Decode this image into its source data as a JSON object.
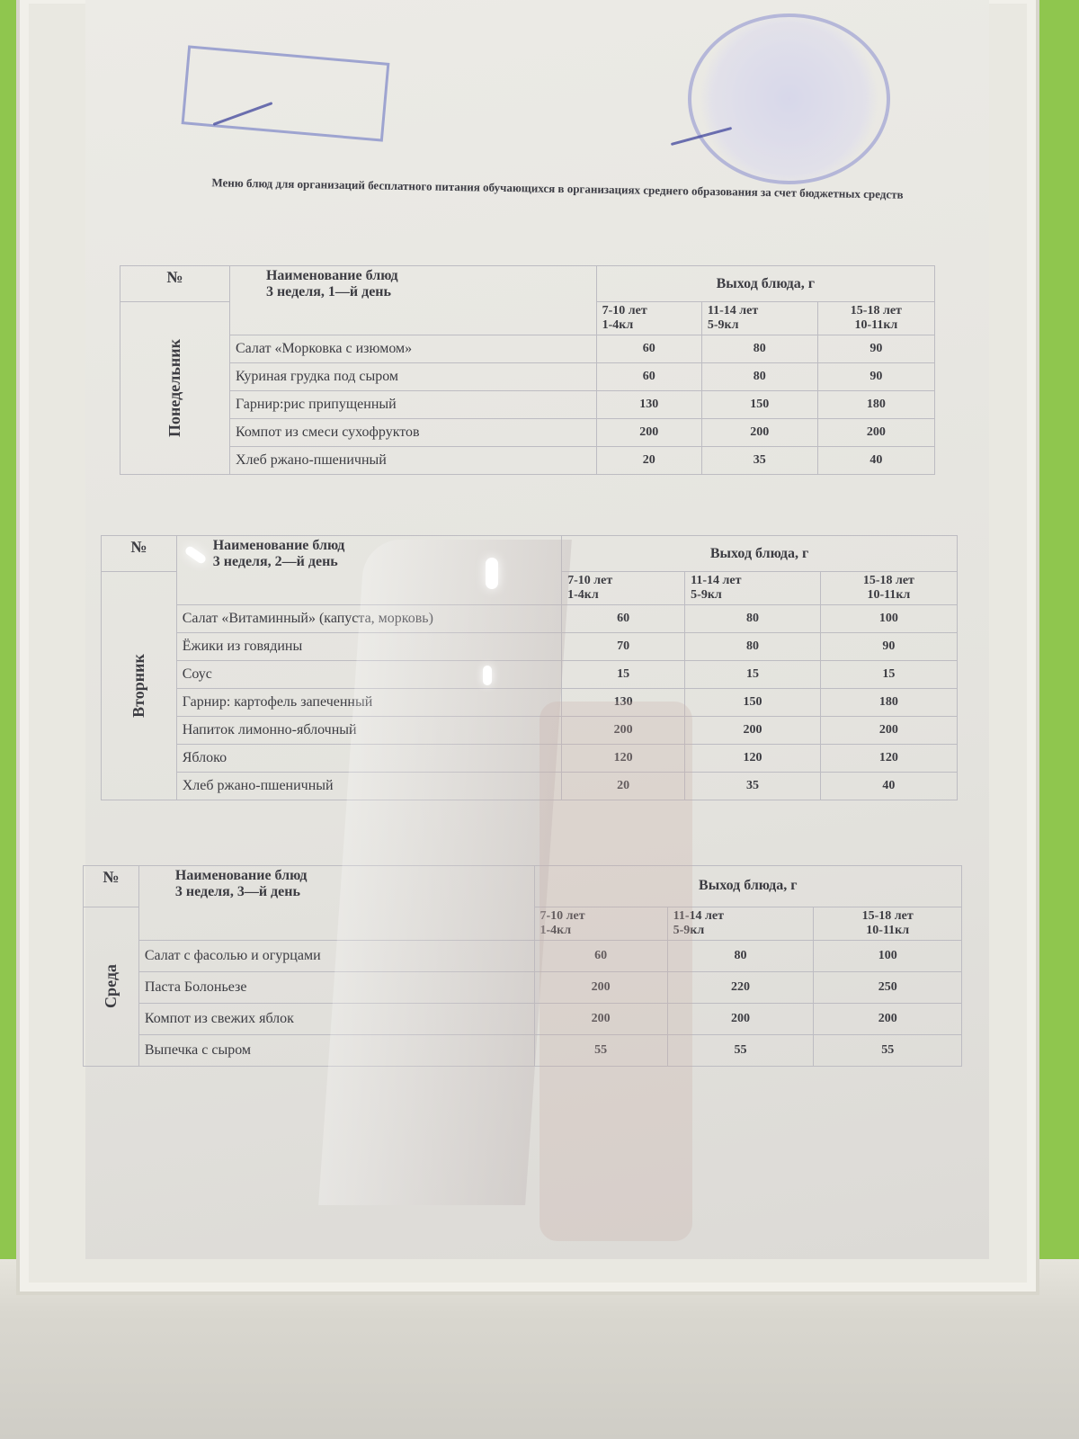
{
  "title": "Меню блюд для организаций бесплатного питания обучающихся в организациях среднего образования за счет бюджетных средств",
  "colors": {
    "wall": "#8fc64e",
    "stamp": "#7d86c8",
    "text": "#3c3c42"
  },
  "tables": [
    {
      "no": "№",
      "name_header": "Наименование блюд",
      "week_day": "3 неделя, 1—й день",
      "yield_header": "Выход блюда, г",
      "ages": [
        [
          "7-10 лет",
          "1-4кл"
        ],
        [
          "11-14 лет",
          "5-9кл"
        ],
        [
          "15-18 лет",
          "10-11кл"
        ]
      ],
      "day": "Понедельник",
      "rows": [
        [
          "Салат «Морковка с изюмом»",
          "60",
          "80",
          "90"
        ],
        [
          "Куриная грудка под сыром",
          "60",
          "80",
          "90"
        ],
        [
          "Гарнир:рис припущенный",
          "130",
          "150",
          "180"
        ],
        [
          "Компот из смеси сухофруктов",
          "200",
          "200",
          "200"
        ],
        [
          "Хлеб ржано-пшеничный",
          "20",
          "35",
          "40"
        ]
      ]
    },
    {
      "no": "№",
      "name_header": "Наименование блюд",
      "week_day": "3 неделя, 2—й день",
      "yield_header": "Выход блюда, г",
      "ages": [
        [
          "7-10 лет",
          "1-4кл"
        ],
        [
          "11-14 лет",
          "5-9кл"
        ],
        [
          "15-18 лет",
          "10-11кл"
        ]
      ],
      "day": "Вторник",
      "rows": [
        [
          "Салат «Витаминный» (капуста, морковь)",
          "60",
          "80",
          "100"
        ],
        [
          "Ёжики из говядины",
          "70",
          "80",
          "90"
        ],
        [
          "Соус",
          "15",
          "15",
          "15"
        ],
        [
          "Гарнир: картофель запеченный",
          "130",
          "150",
          "180"
        ],
        [
          "Напиток лимонно-яблочный",
          "200",
          "200",
          "200"
        ],
        [
          "Яблоко",
          "120",
          "120",
          "120"
        ],
        [
          "Хлеб ржано-пшеничный",
          "20",
          "35",
          "40"
        ]
      ]
    },
    {
      "no": "№",
      "name_header": "Наименование блюд",
      "week_day": "3 неделя, 3—й день",
      "yield_header": "Выход блюда, г",
      "ages": [
        [
          "7-10 лет",
          "1-4кл"
        ],
        [
          "11-14 лет",
          "5-9кл"
        ],
        [
          "15-18 лет",
          "10-11кл"
        ]
      ],
      "day": "Среда",
      "rows": [
        [
          "Салат с фасолью и огурцами",
          "60",
          "80",
          "100"
        ],
        [
          "Паста Болоньезе",
          "200",
          "220",
          "250"
        ],
        [
          "Компот из свежих яблок",
          "200",
          "200",
          "200"
        ],
        [
          "Выпечка с сыром",
          "55",
          "55",
          "55"
        ]
      ]
    }
  ]
}
